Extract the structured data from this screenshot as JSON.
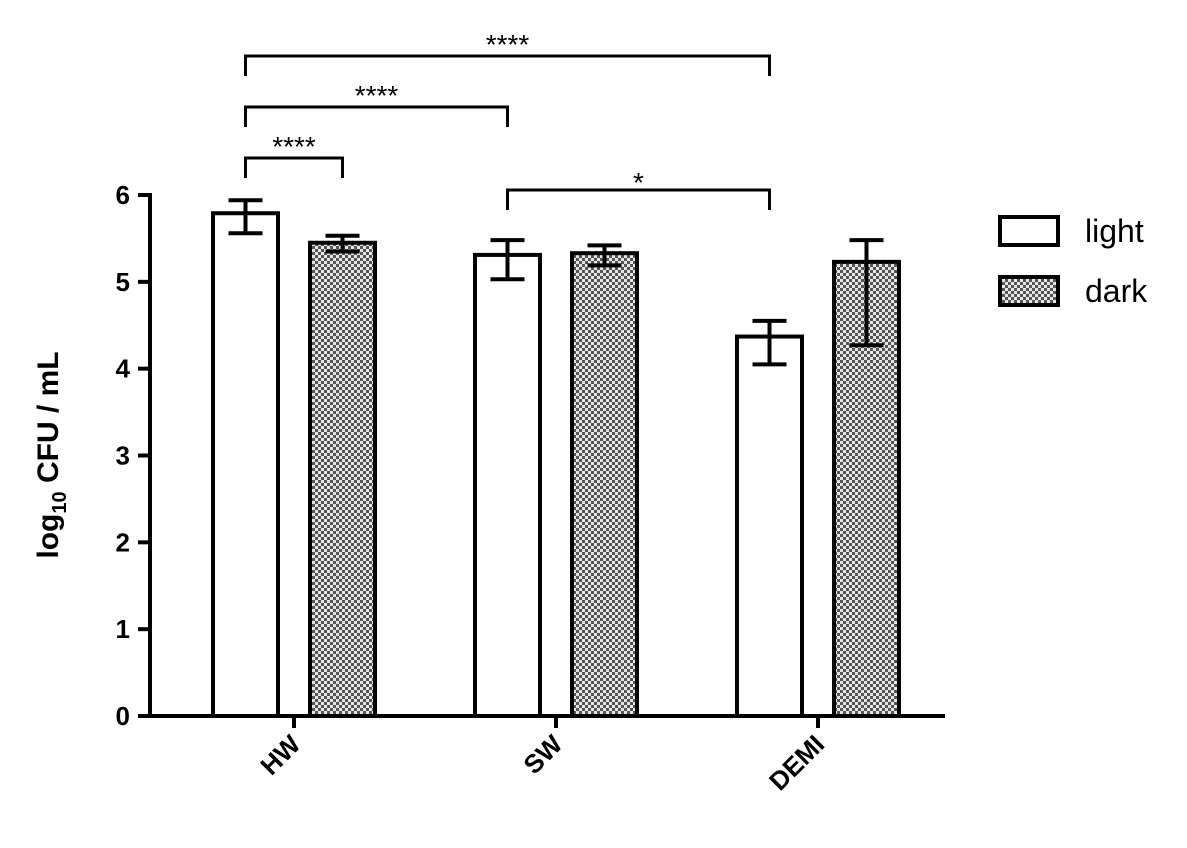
{
  "chart_data": {
    "type": "bar",
    "y_label": [
      "log",
      "10",
      " CFU / mL"
    ],
    "categories": [
      "HW",
      "SW",
      "DEMI"
    ],
    "series": [
      {
        "name": "light",
        "color": "#ffffff",
        "pattern": "none",
        "values": [
          5.79,
          5.31,
          4.37
        ],
        "errors": [
          [
            0.23,
            0.15
          ],
          [
            0.28,
            0.17
          ],
          [
            0.32,
            0.18
          ]
        ]
      },
      {
        "name": "dark",
        "color": "#9a9a9a",
        "pattern": "checker",
        "values": [
          5.45,
          5.33,
          5.23
        ],
        "errors": [
          [
            0.1,
            0.08
          ],
          [
            0.14,
            0.09
          ],
          [
            0.96,
            0.25
          ]
        ]
      }
    ],
    "ylim": [
      0,
      6
    ],
    "yticks": [
      0,
      1,
      2,
      3,
      4,
      5,
      6
    ],
    "significance": [
      {
        "label": "****",
        "from": [
          0,
          0
        ],
        "to": [
          1,
          0
        ]
      },
      {
        "label": "****",
        "from": [
          0,
          0
        ],
        "to": [
          0,
          1
        ]
      },
      {
        "label": "****",
        "from": [
          0,
          0
        ],
        "to": [
          0,
          2
        ]
      },
      {
        "label": "*",
        "from": [
          0,
          1
        ],
        "to": [
          0,
          2
        ]
      }
    ],
    "legend": "right"
  }
}
